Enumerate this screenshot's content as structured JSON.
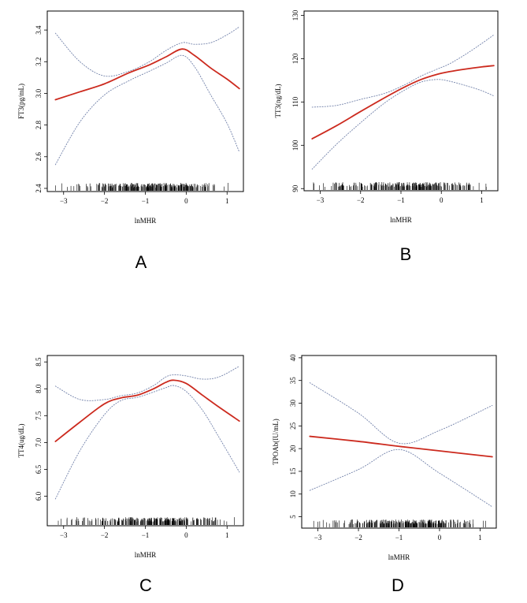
{
  "chart_data": [
    {
      "type": "line",
      "panel_label": "A",
      "xlabel": "lnMHR",
      "ylabel": "FT3(pg/mL)",
      "xlim": [
        -3.4,
        1.4
      ],
      "ylim": [
        2.38,
        3.52
      ],
      "xticks": [
        -3,
        -2,
        -1,
        0,
        1
      ],
      "yticks": [
        2.4,
        2.6,
        2.8,
        3.0,
        3.2,
        3.4
      ],
      "ytick_labels": [
        "2.4",
        "2.6",
        "2.8",
        "3.0",
        "3.2",
        "3.4"
      ],
      "grid": false,
      "fit_color": "#cc2a1e",
      "ci_color": "#6f7fa8",
      "series": [
        {
          "role": "fit",
          "x": [
            -3.2,
            -2.6,
            -2.0,
            -1.4,
            -0.9,
            -0.5,
            -0.1,
            0.2,
            0.6,
            1.0,
            1.3
          ],
          "y": [
            2.96,
            3.01,
            3.06,
            3.13,
            3.18,
            3.23,
            3.28,
            3.24,
            3.16,
            3.09,
            3.03
          ]
        },
        {
          "role": "ci-upper",
          "x": [
            -3.2,
            -2.6,
            -2.0,
            -1.4,
            -0.9,
            -0.5,
            -0.1,
            0.2,
            0.6,
            1.0,
            1.3
          ],
          "y": [
            3.38,
            3.2,
            3.11,
            3.14,
            3.2,
            3.27,
            3.32,
            3.31,
            3.32,
            3.37,
            3.42
          ]
        },
        {
          "role": "ci-lower",
          "x": [
            -3.2,
            -2.6,
            -2.0,
            -1.4,
            -0.9,
            -0.5,
            -0.1,
            0.2,
            0.6,
            1.0,
            1.3
          ],
          "y": [
            2.55,
            2.82,
            2.99,
            3.08,
            3.14,
            3.19,
            3.24,
            3.17,
            2.99,
            2.81,
            2.63
          ]
        }
      ],
      "rug_density": [
        0.1,
        0.25,
        0.45,
        0.75,
        0.95,
        0.7,
        0.35,
        0.1
      ]
    },
    {
      "type": "line",
      "panel_label": "B",
      "xlabel": "lnMHR",
      "ylabel": "TT3(ng/dL)",
      "xlim": [
        -3.4,
        1.4
      ],
      "ylim": [
        89.5,
        131
      ],
      "xticks": [
        -3,
        -2,
        -1,
        0,
        1
      ],
      "yticks": [
        90,
        100,
        110,
        120,
        130
      ],
      "ytick_labels": [
        "90",
        "100",
        "110",
        "120",
        "130"
      ],
      "grid": false,
      "fit_color": "#cc2a1e",
      "ci_color": "#6f7fa8",
      "series": [
        {
          "role": "fit",
          "x": [
            -3.2,
            -2.6,
            -2.0,
            -1.4,
            -0.9,
            -0.5,
            -0.1,
            0.2,
            0.6,
            1.0,
            1.3
          ],
          "y": [
            101.5,
            104.5,
            107.8,
            111.0,
            113.5,
            115.2,
            116.4,
            117.0,
            117.6,
            118.1,
            118.4
          ]
        },
        {
          "role": "ci-upper",
          "x": [
            -3.2,
            -2.6,
            -2.0,
            -1.4,
            -0.9,
            -0.5,
            -0.1,
            0.2,
            0.6,
            1.0,
            1.3
          ],
          "y": [
            108.8,
            109.2,
            110.6,
            112.0,
            114.0,
            116.0,
            117.6,
            118.8,
            121.0,
            123.5,
            125.5
          ]
        },
        {
          "role": "ci-lower",
          "x": [
            -3.2,
            -2.6,
            -2.0,
            -1.4,
            -0.9,
            -0.5,
            -0.1,
            0.2,
            0.6,
            1.0,
            1.3
          ],
          "y": [
            94.5,
            100.2,
            105.2,
            109.8,
            112.8,
            114.6,
            115.2,
            114.8,
            113.8,
            112.6,
            111.4
          ]
        }
      ],
      "rug_density": [
        0.1,
        0.25,
        0.45,
        0.75,
        0.95,
        0.7,
        0.35,
        0.1
      ]
    },
    {
      "type": "line",
      "panel_label": "C",
      "xlabel": "lnMHR",
      "ylabel": "TT4(ug/dL)",
      "xlim": [
        -3.4,
        1.4
      ],
      "ylim": [
        5.45,
        8.62
      ],
      "xticks": [
        -3,
        -2,
        -1,
        0,
        1
      ],
      "yticks": [
        6.0,
        6.5,
        7.0,
        7.5,
        8.0,
        8.5
      ],
      "ytick_labels": [
        "6.0",
        "6.5",
        "7.0",
        "7.5",
        "8.0",
        "8.5"
      ],
      "grid": false,
      "fit_color": "#cc2a1e",
      "ci_color": "#6f7fa8",
      "series": [
        {
          "role": "fit",
          "x": [
            -3.2,
            -2.6,
            -2.0,
            -1.6,
            -1.2,
            -0.8,
            -0.5,
            -0.3,
            0.0,
            0.4,
            0.8,
            1.3
          ],
          "y": [
            7.02,
            7.38,
            7.72,
            7.83,
            7.88,
            8.0,
            8.12,
            8.16,
            8.1,
            7.88,
            7.66,
            7.4
          ]
        },
        {
          "role": "ci-upper",
          "x": [
            -3.2,
            -2.6,
            -2.0,
            -1.6,
            -1.2,
            -0.8,
            -0.5,
            -0.3,
            0.0,
            0.4,
            0.8,
            1.3
          ],
          "y": [
            8.05,
            7.8,
            7.8,
            7.87,
            7.92,
            8.06,
            8.22,
            8.26,
            8.24,
            8.18,
            8.22,
            8.42
          ]
        },
        {
          "role": "ci-lower",
          "x": [
            -3.2,
            -2.6,
            -2.0,
            -1.6,
            -1.2,
            -0.8,
            -0.5,
            -0.3,
            0.0,
            0.4,
            0.8,
            1.3
          ],
          "y": [
            5.95,
            6.85,
            7.52,
            7.78,
            7.84,
            7.94,
            8.02,
            8.06,
            7.95,
            7.6,
            7.1,
            6.45
          ]
        }
      ],
      "rug_density": [
        0.1,
        0.25,
        0.45,
        0.75,
        0.95,
        0.7,
        0.35,
        0.1
      ]
    },
    {
      "type": "line",
      "panel_label": "D",
      "xlabel": "lnMHR",
      "ylabel": "TPOAb(IU/mL)",
      "xlim": [
        -3.4,
        1.4
      ],
      "ylim": [
        2.5,
        40.5
      ],
      "xticks": [
        -3,
        -2,
        -1,
        0,
        1
      ],
      "yticks": [
        5,
        10,
        15,
        20,
        25,
        30,
        35,
        40
      ],
      "ytick_labels": [
        "5",
        "10",
        "15",
        "20",
        "25",
        "30",
        "35",
        "40"
      ],
      "grid": false,
      "fit_color": "#cc2a1e",
      "ci_color": "#6f7fa8",
      "series": [
        {
          "role": "fit",
          "x": [
            -3.2,
            -2.0,
            -1.0,
            0.0,
            1.3
          ],
          "y": [
            22.7,
            21.6,
            20.5,
            19.5,
            18.2
          ]
        },
        {
          "role": "ci-upper",
          "x": [
            -3.2,
            -2.0,
            -1.0,
            0.0,
            1.3
          ],
          "y": [
            34.5,
            27.8,
            21.2,
            24.0,
            29.5
          ]
        },
        {
          "role": "ci-lower",
          "x": [
            -3.2,
            -2.0,
            -1.0,
            0.0,
            1.3
          ],
          "y": [
            10.8,
            15.4,
            19.8,
            14.6,
            7.2
          ]
        }
      ],
      "rug_density": [
        0.1,
        0.25,
        0.45,
        0.75,
        0.95,
        0.7,
        0.35,
        0.1
      ]
    }
  ]
}
